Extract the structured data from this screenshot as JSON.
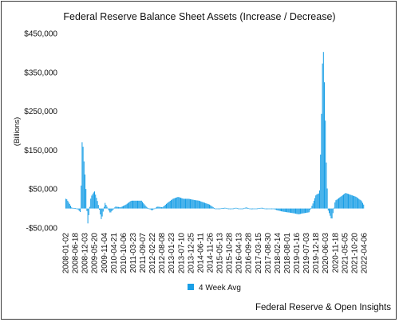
{
  "chart_data": {
    "type": "bar",
    "title": "Federal Reserve Balance Sheet Assets (Increase / Decrease)",
    "ylabel": "(Billions)",
    "xlabel": "",
    "ylim": [
      -50000,
      450000
    ],
    "y_ticks": [
      "$450,000",
      "$350,000",
      "$250,000",
      "$150,000",
      "$50,000",
      "-$50,000"
    ],
    "y_tick_values": [
      450000,
      350000,
      250000,
      150000,
      50000,
      -50000
    ],
    "grid": false,
    "legend_position": "bottom",
    "color": "#1a9fe6",
    "x_tick_labels": [
      "2008-01-02",
      "2008-06-18",
      "2008-12-03",
      "2009-05-20",
      "2009-11-04",
      "2010-04-21",
      "2010-10-06",
      "2011-03-23",
      "2011-09-07",
      "2012-02-22",
      "2012-08-08",
      "2013-01-23",
      "2013-07-10",
      "2013-12-25",
      "2014-06-11",
      "2014-11-26",
      "2015-05-13",
      "2015-10-28",
      "2016-04-13",
      "2016-09-28",
      "2017-03-15",
      "2017-08-30",
      "2018-02-14",
      "2018-08-01",
      "2019-01-16",
      "2019-07-03",
      "2019-12-18",
      "2020-06-03",
      "2020-11-18",
      "2021-05-05",
      "2021-10-20",
      "2022-04-06"
    ],
    "series": [
      {
        "name": "4 Week Avg",
        "x": [
          "2008-01",
          "2008-04",
          "2008-07",
          "2008-09",
          "2008-10",
          "2008-11",
          "2008-12",
          "2009-01",
          "2009-03",
          "2009-05",
          "2009-07",
          "2009-09",
          "2009-11",
          "2010-02",
          "2010-05",
          "2010-08",
          "2010-11",
          "2011-02",
          "2011-05",
          "2011-08",
          "2011-11",
          "2012-02",
          "2012-05",
          "2012-08",
          "2012-11",
          "2013-02",
          "2013-05",
          "2013-08",
          "2013-11",
          "2014-02",
          "2014-05",
          "2014-08",
          "2014-11",
          "2015-02",
          "2015-05",
          "2015-08",
          "2015-11",
          "2016-02",
          "2016-05",
          "2016-08",
          "2016-11",
          "2017-02",
          "2017-05",
          "2017-08",
          "2017-11",
          "2018-02",
          "2018-05",
          "2018-08",
          "2018-11",
          "2019-02",
          "2019-05",
          "2019-08",
          "2019-10",
          "2019-12",
          "2020-02",
          "2020-03",
          "2020-04",
          "2020-05",
          "2020-06",
          "2020-07",
          "2020-09",
          "2020-11",
          "2021-02",
          "2021-05",
          "2021-08",
          "2021-11",
          "2022-02",
          "2022-04"
        ],
        "values": [
          25000,
          2000,
          0,
          -10000,
          190000,
          120000,
          60000,
          -45000,
          30000,
          45000,
          15000,
          -30000,
          15000,
          -12000,
          5000,
          3000,
          10000,
          20000,
          20000,
          20000,
          3000,
          -5000,
          5000,
          3000,
          15000,
          25000,
          30000,
          25000,
          25000,
          22000,
          20000,
          15000,
          10000,
          0,
          0,
          2000,
          -2000,
          2000,
          -2000,
          3000,
          -2000,
          0,
          2000,
          -2000,
          0,
          -5000,
          -8000,
          -10000,
          -12000,
          -15000,
          -12000,
          -10000,
          10000,
          35000,
          40000,
          200000,
          440000,
          300000,
          100000,
          -5000,
          -30000,
          20000,
          30000,
          40000,
          35000,
          30000,
          20000,
          5000
        ]
      }
    ]
  },
  "footer": "Federal Reserve & Open Insights"
}
